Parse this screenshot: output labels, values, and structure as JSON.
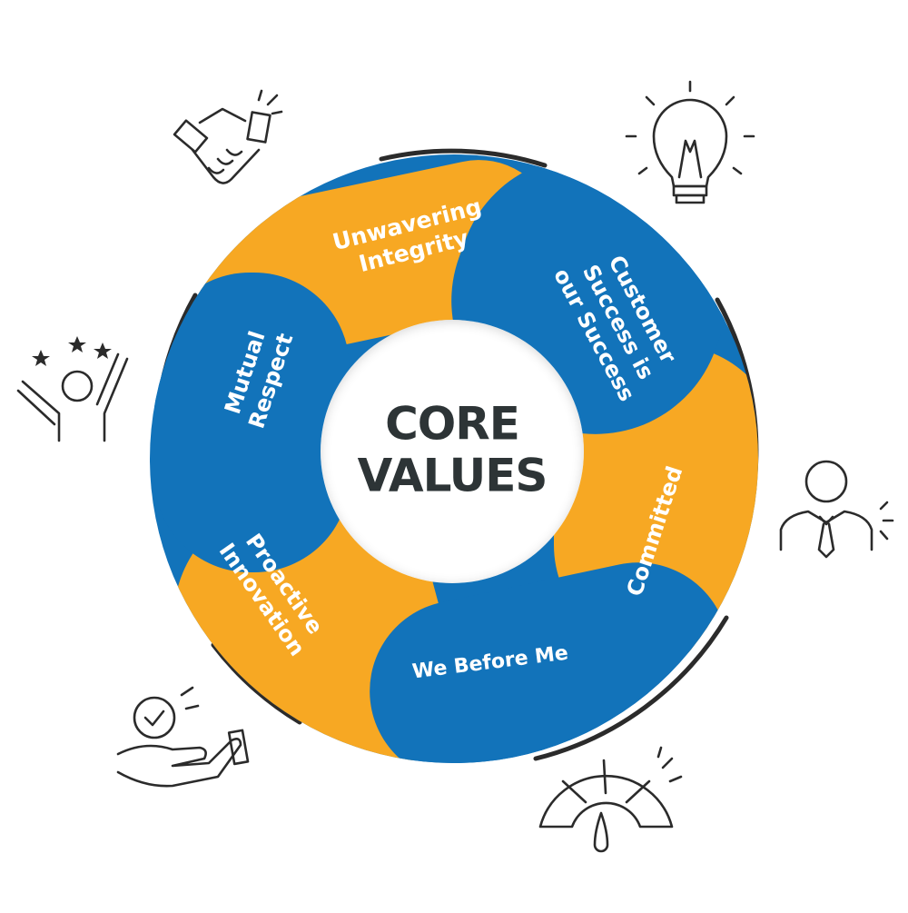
{
  "center": {
    "line1": "CORE",
    "line2": "VALUES"
  },
  "colors": {
    "orange": "#F7A823",
    "blue": "#1273BA",
    "ring_dark": "#2b2b2b",
    "center_text": "#2d3436"
  },
  "segments": [
    {
      "id": "unwavering-integrity",
      "color": "orange",
      "lines": [
        "Unwavering",
        "Integrity"
      ],
      "icon": "handshake-icon"
    },
    {
      "id": "customer-success",
      "color": "blue",
      "lines": [
        "Customer",
        "Success is",
        "our Success"
      ],
      "icon": "lightbulb-icon"
    },
    {
      "id": "committed",
      "color": "orange",
      "lines": [
        "Committed"
      ],
      "icon": "businessman-icon"
    },
    {
      "id": "we-before-me",
      "color": "blue",
      "lines": [
        "We Before Me"
      ],
      "icon": "gauge-icon"
    },
    {
      "id": "proactive-innovation",
      "color": "orange",
      "lines": [
        "Proactive",
        "Innovation"
      ],
      "icon": "hand-clock-icon"
    },
    {
      "id": "mutual-respect",
      "color": "blue",
      "lines": [
        "Mutual",
        "Respect"
      ],
      "icon": "celebrating-person-icon"
    }
  ]
}
